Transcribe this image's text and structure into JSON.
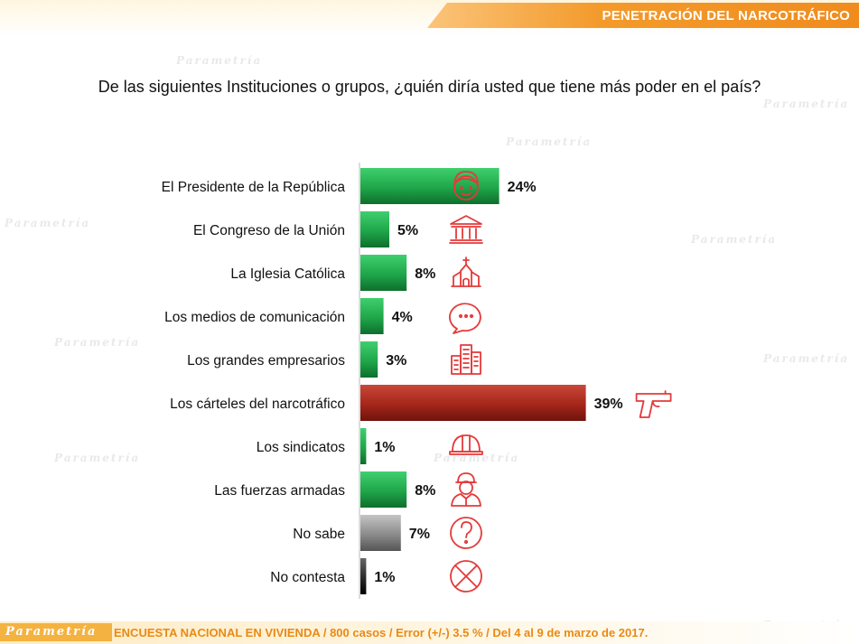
{
  "header": {
    "title": "PENETRACIÓN DEL NARCOTRÁFICO"
  },
  "question": "De las siguientes Instituciones o grupos, ¿quién diría usted que tiene más poder en el país?",
  "footer": {
    "logo": "Parametría",
    "text": "ENCUESTA NACIONAL EN VIVIENDA / 800 casos / Error (+/-) 3.5 % / Del 4 al 9 de marzo de 2017."
  },
  "colors": {
    "green": "#1fa64a",
    "red": "#a5261a",
    "gray": "#8a8a8a",
    "dark": "#2a2a2a",
    "icon": "#e43a3a",
    "accent": "#f08c1e"
  },
  "chart_data": {
    "type": "bar",
    "orientation": "horizontal",
    "categories": [
      "El Presidente de la República",
      "El Congreso de la Unión",
      "La Iglesia Católica",
      "Los medios de comunicación",
      "Los grandes empresarios",
      "Los cárteles del narcotráfico",
      "Los sindicatos",
      "Las fuerzas armadas",
      "No sabe",
      "No contesta"
    ],
    "values": [
      24,
      5,
      8,
      4,
      3,
      39,
      1,
      8,
      7,
      1
    ],
    "value_labels": [
      "24%",
      "5%",
      "8%",
      "4%",
      "3%",
      "39%",
      "1%",
      "8%",
      "7%",
      "1%"
    ],
    "bar_colors": [
      "green",
      "green",
      "green",
      "green",
      "green",
      "red",
      "green",
      "green",
      "gray",
      "dark"
    ],
    "icons": [
      "person-icon",
      "congress-building-icon",
      "church-icon",
      "speech-bubble-icon",
      "buildings-icon",
      "pistol-icon",
      "hard-hat-icon",
      "soldier-icon",
      "question-mark-icon",
      "crossed-circle-icon"
    ],
    "xlim": [
      0,
      70
    ],
    "grid": false
  }
}
